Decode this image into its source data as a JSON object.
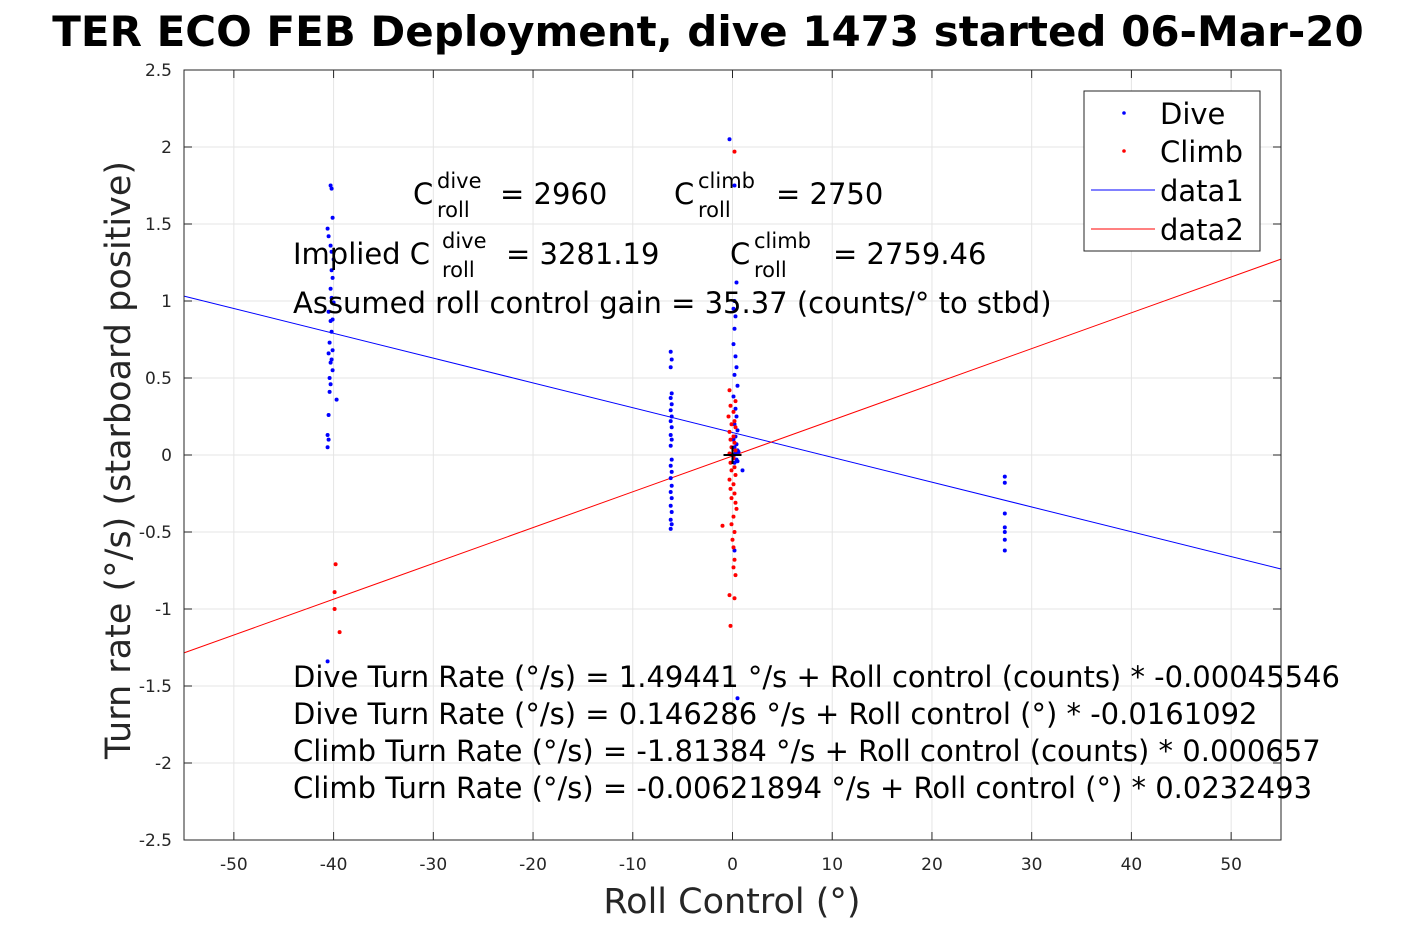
{
  "chart_data": {
    "type": "scatter",
    "title": "TER ECO FEB Deployment, dive 1473 started 06-Mar-20",
    "xlabel": "Roll Control (°)",
    "ylabel": "Turn rate (°/s) (starboard positive)",
    "xlim": [
      -55,
      55
    ],
    "ylim": [
      -2.5,
      2.5
    ],
    "xticks": [
      -50,
      -40,
      -30,
      -20,
      -10,
      0,
      10,
      20,
      30,
      40,
      50
    ],
    "yticks": [
      -2.5,
      -2,
      -1.5,
      -1,
      -0.5,
      0,
      0.5,
      1,
      1.5,
      2,
      2.5
    ],
    "grid": true,
    "legend_position": "top-right",
    "legend": [
      "Dive",
      "Climb",
      "data1",
      "data2"
    ],
    "colors": {
      "dive": "#0000ff",
      "climb": "#ff0000",
      "axes": "#262626",
      "grid": "#e5e5e5"
    },
    "series": [
      {
        "name": "Dive",
        "style": "points",
        "color": "#0000ff",
        "points": [
          [
            -40.6,
            1.47
          ],
          [
            -40.3,
            1.75
          ],
          [
            -40.2,
            1.73
          ],
          [
            -40.1,
            1.54
          ],
          [
            -40.5,
            1.42
          ],
          [
            -40.3,
            1.36
          ],
          [
            -40.2,
            1.32
          ],
          [
            -40.0,
            1.27
          ],
          [
            -40.2,
            1.2
          ],
          [
            -40.1,
            1.15
          ],
          [
            -40.3,
            1.08
          ],
          [
            -40.2,
            1.02
          ],
          [
            -40.0,
            0.99
          ],
          [
            -40.5,
            0.93
          ],
          [
            -40.1,
            0.88
          ],
          [
            -40.3,
            0.87
          ],
          [
            -40.2,
            0.8
          ],
          [
            -40.4,
            0.73
          ],
          [
            -40.1,
            0.68
          ],
          [
            -40.5,
            0.66
          ],
          [
            -40.2,
            0.62
          ],
          [
            -40.3,
            0.6
          ],
          [
            -40.1,
            0.55
          ],
          [
            -40.4,
            0.5
          ],
          [
            -40.3,
            0.46
          ],
          [
            -40.4,
            0.41
          ],
          [
            -39.7,
            0.36
          ],
          [
            -40.5,
            0.26
          ],
          [
            -40.6,
            0.13
          ],
          [
            -40.5,
            0.1
          ],
          [
            -40.6,
            0.05
          ],
          [
            -40.6,
            -1.34
          ],
          [
            -6.2,
            0.67
          ],
          [
            -6.1,
            0.62
          ],
          [
            -6.2,
            0.57
          ],
          [
            -6.1,
            0.4
          ],
          [
            -6.2,
            0.37
          ],
          [
            -6.1,
            0.33
          ],
          [
            -6.2,
            0.29
          ],
          [
            -6.1,
            0.25
          ],
          [
            -6.2,
            0.22
          ],
          [
            -6.1,
            0.18
          ],
          [
            -6.2,
            0.13
          ],
          [
            -6.1,
            0.1
          ],
          [
            -6.2,
            0.06
          ],
          [
            -6.1,
            -0.03
          ],
          [
            -6.2,
            -0.07
          ],
          [
            -6.1,
            -0.11
          ],
          [
            -6.2,
            -0.15
          ],
          [
            -6.1,
            -0.2
          ],
          [
            -6.2,
            -0.24
          ],
          [
            -6.1,
            -0.28
          ],
          [
            -6.2,
            -0.33
          ],
          [
            -6.1,
            -0.37
          ],
          [
            -6.2,
            -0.42
          ],
          [
            -6.1,
            -0.45
          ],
          [
            -6.2,
            -0.48
          ],
          [
            -0.3,
            2.05
          ],
          [
            0.2,
            1.75
          ],
          [
            0.4,
            1.12
          ],
          [
            0.2,
            1.0
          ],
          [
            0.1,
            0.95
          ],
          [
            0.3,
            0.9
          ],
          [
            0.2,
            0.82
          ],
          [
            0.1,
            0.72
          ],
          [
            0.3,
            0.64
          ],
          [
            0.4,
            0.57
          ],
          [
            0.2,
            0.52
          ],
          [
            0.5,
            0.45
          ],
          [
            0.1,
            0.38
          ],
          [
            0.3,
            0.3
          ],
          [
            0.4,
            0.25
          ],
          [
            0.2,
            0.2
          ],
          [
            0.5,
            0.16
          ],
          [
            0.3,
            0.12
          ],
          [
            0.1,
            0.1
          ],
          [
            0.4,
            0.07
          ],
          [
            0.2,
            0.05
          ],
          [
            0.5,
            0.03
          ],
          [
            0.3,
            0.01
          ],
          [
            0.1,
            -0.01
          ],
          [
            0.4,
            -0.03
          ],
          [
            0.2,
            -0.05
          ],
          [
            0.6,
            0.02
          ],
          [
            0.5,
            -0.04
          ],
          [
            1.0,
            -0.1
          ],
          [
            0.2,
            -0.62
          ],
          [
            0.5,
            -1.58
          ],
          [
            27.3,
            -0.14
          ],
          [
            27.3,
            -0.18
          ],
          [
            27.3,
            -0.38
          ],
          [
            27.3,
            -0.47
          ],
          [
            27.3,
            -0.5
          ],
          [
            27.3,
            -0.55
          ],
          [
            27.3,
            -0.62
          ]
        ]
      },
      {
        "name": "Climb",
        "style": "points",
        "color": "#ff0000",
        "points": [
          [
            0.2,
            1.97
          ],
          [
            -0.3,
            0.42
          ],
          [
            0.3,
            0.35
          ],
          [
            -0.2,
            0.32
          ],
          [
            0.1,
            0.28
          ],
          [
            -0.4,
            0.25
          ],
          [
            0.2,
            0.22
          ],
          [
            -0.1,
            0.2
          ],
          [
            0.3,
            0.18
          ],
          [
            -0.3,
            0.15
          ],
          [
            0.1,
            0.12
          ],
          [
            -0.2,
            0.1
          ],
          [
            0.2,
            0.08
          ],
          [
            -0.1,
            0.05
          ],
          [
            0.3,
            0.03
          ],
          [
            -0.3,
            0.01
          ],
          [
            0.1,
            -0.02
          ],
          [
            -0.2,
            -0.05
          ],
          [
            0.2,
            -0.08
          ],
          [
            -0.1,
            -0.1
          ],
          [
            0.3,
            -0.13
          ],
          [
            -0.3,
            -0.16
          ],
          [
            0.1,
            -0.19
          ],
          [
            -0.2,
            -0.22
          ],
          [
            0.2,
            -0.25
          ],
          [
            -0.1,
            -0.28
          ],
          [
            0.3,
            -0.31
          ],
          [
            0.4,
            -0.35
          ],
          [
            0.1,
            -0.4
          ],
          [
            -0.1,
            -0.45
          ],
          [
            -1.0,
            -0.46
          ],
          [
            0.2,
            -0.5
          ],
          [
            0.0,
            -0.55
          ],
          [
            0.1,
            -0.6
          ],
          [
            0.2,
            -0.68
          ],
          [
            0.1,
            -0.73
          ],
          [
            0.3,
            -0.78
          ],
          [
            -0.3,
            -0.91
          ],
          [
            0.2,
            -0.93
          ],
          [
            -0.2,
            -1.11
          ],
          [
            -39.8,
            -0.71
          ],
          [
            -39.9,
            -0.89
          ],
          [
            -39.9,
            -1.0
          ],
          [
            -39.4,
            -1.15
          ]
        ]
      },
      {
        "name": "data1",
        "style": "line",
        "color": "#0000ff",
        "x": [
          -55,
          55
        ],
        "y": [
          1.032,
          -0.74
        ]
      },
      {
        "name": "data2",
        "style": "line",
        "color": "#ff0000",
        "x": [
          -55,
          55
        ],
        "y": [
          -1.285,
          1.272
        ]
      }
    ],
    "reference_marker": {
      "x": 0,
      "y": 0,
      "symbol": "+"
    },
    "annotations": {
      "c_roll_dive_label": "C",
      "c_roll_dive_sup": "dive",
      "c_roll_dive_sub": "roll",
      "c_roll_dive_value": "= 2960",
      "c_roll_climb_label": "C",
      "c_roll_climb_sup": "climb",
      "c_roll_climb_sub": "roll",
      "c_roll_climb_value": "= 2750",
      "implied_prefix": "Implied C",
      "implied_dive_sup": "dive",
      "implied_dive_sub": "roll",
      "implied_dive_value": "= 3281.19",
      "implied_climb_label": "C",
      "implied_climb_sup": "climb",
      "implied_climb_sub": "roll",
      "implied_climb_value": "= 2759.46",
      "gain": "Assumed roll control gain = 35.37 (counts/° to stbd)",
      "dive_fit_counts": "Dive Turn Rate (°/s) = 1.49441 °/s + Roll control (counts) * -0.00045546",
      "dive_fit_deg": "Dive Turn Rate (°/s) = 0.146286 °/s + Roll control (°) * -0.0161092",
      "climb_fit_counts": "Climb Turn Rate (°/s) = -1.81384 °/s + Roll control (counts) * 0.000657",
      "climb_fit_deg": "Climb Turn Rate (°/s) = -0.00621894 °/s + Roll control (°) * 0.0232493"
    }
  }
}
